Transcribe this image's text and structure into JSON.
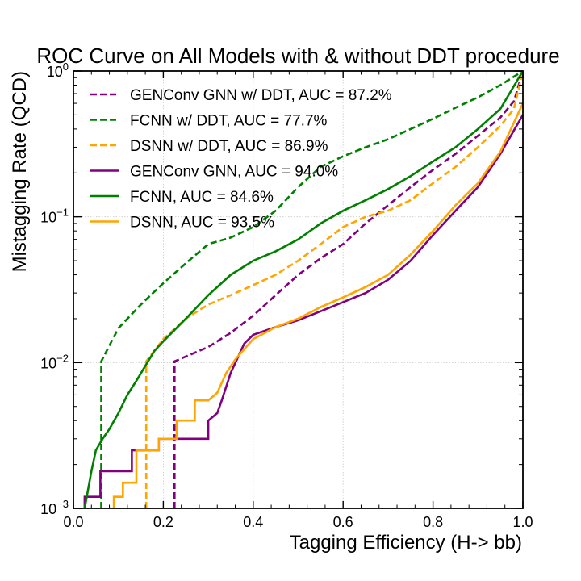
{
  "chart_data": {
    "type": "line",
    "title": "ROC Curve on All Models with & without DDT procedure",
    "xlabel": "Tagging Efficiency (H-> bb)",
    "ylabel": "Mistagging Rate (QCD)",
    "xlim": [
      0,
      1
    ],
    "ylim": [
      0.001,
      1
    ],
    "yscale": "log",
    "grid": true,
    "legend": "top-left",
    "x_ticks": [
      "0.0",
      "0.2",
      "0.4",
      "0.6",
      "0.8",
      "1.0"
    ],
    "y_ticks": [
      {
        "base": "10",
        "exp": "−3"
      },
      {
        "base": "10",
        "exp": "−2"
      },
      {
        "base": "10",
        "exp": "−1"
      },
      {
        "base": "10",
        "exp": "0"
      }
    ],
    "series": [
      {
        "name": "GENConv GNN w/ DDT, AUC = 87.2%",
        "color": "#800080",
        "dash": true,
        "x": [
          0.225,
          0.225,
          0.3,
          0.35,
          0.4,
          0.45,
          0.5,
          0.55,
          0.6,
          0.65,
          0.7,
          0.75,
          0.8,
          0.85,
          0.9,
          0.95,
          0.98,
          1.0
        ],
        "y": [
          0.001,
          0.0102,
          0.0128,
          0.016,
          0.021,
          0.029,
          0.04,
          0.052,
          0.065,
          0.09,
          0.12,
          0.16,
          0.21,
          0.27,
          0.36,
          0.48,
          0.62,
          1.0
        ]
      },
      {
        "name": "FCNN w/ DDT, AUC = 77.7%",
        "color": "#008000",
        "dash": true,
        "x": [
          0.062,
          0.062,
          0.1,
          0.15,
          0.2,
          0.25,
          0.3,
          0.35,
          0.4,
          0.45,
          0.5,
          0.55,
          0.6,
          0.65,
          0.7,
          0.75,
          0.8,
          0.85,
          0.9,
          0.95,
          1.0
        ],
        "y": [
          0.001,
          0.0102,
          0.0172,
          0.025,
          0.035,
          0.048,
          0.065,
          0.072,
          0.085,
          0.11,
          0.16,
          0.22,
          0.26,
          0.3,
          0.34,
          0.4,
          0.47,
          0.56,
          0.66,
          0.8,
          1.0
        ]
      },
      {
        "name": "DSNN w/ DDT, AUC = 86.9%",
        "color": "#FFA500",
        "dash": true,
        "x": [
          0.162,
          0.162,
          0.2,
          0.25,
          0.3,
          0.35,
          0.4,
          0.45,
          0.5,
          0.55,
          0.6,
          0.65,
          0.7,
          0.75,
          0.8,
          0.85,
          0.9,
          0.95,
          0.98,
          1.0
        ],
        "y": [
          0.001,
          0.0102,
          0.0145,
          0.02,
          0.025,
          0.029,
          0.034,
          0.04,
          0.05,
          0.065,
          0.085,
          0.1,
          0.11,
          0.13,
          0.17,
          0.22,
          0.3,
          0.42,
          0.55,
          1.0
        ]
      },
      {
        "name": "GENConv GNN, AUC = 94.0%",
        "color": "#800080",
        "dash": false,
        "x": [
          0.025,
          0.025,
          0.06,
          0.06,
          0.13,
          0.13,
          0.19,
          0.19,
          0.3,
          0.3,
          0.32,
          0.33,
          0.35,
          0.38,
          0.4,
          0.45,
          0.5,
          0.55,
          0.6,
          0.65,
          0.7,
          0.75,
          0.8,
          0.85,
          0.9,
          0.95,
          1.0
        ],
        "y": [
          0.001,
          0.0012,
          0.0012,
          0.0018,
          0.0018,
          0.0025,
          0.0025,
          0.003,
          0.003,
          0.004,
          0.0045,
          0.0055,
          0.0085,
          0.0135,
          0.0155,
          0.0175,
          0.0195,
          0.0225,
          0.026,
          0.03,
          0.037,
          0.05,
          0.075,
          0.11,
          0.16,
          0.27,
          0.5
        ]
      },
      {
        "name": "FCNN, AUC = 84.6%",
        "color": "#008000",
        "dash": false,
        "x": [
          0.025,
          0.04,
          0.05,
          0.065,
          0.08,
          0.1,
          0.12,
          0.14,
          0.16,
          0.18,
          0.2,
          0.25,
          0.3,
          0.35,
          0.4,
          0.45,
          0.5,
          0.55,
          0.6,
          0.65,
          0.7,
          0.75,
          0.8,
          0.85,
          0.9,
          0.95,
          1.0
        ],
        "y": [
          0.001,
          0.0018,
          0.0025,
          0.003,
          0.0035,
          0.0045,
          0.006,
          0.0075,
          0.0095,
          0.012,
          0.014,
          0.02,
          0.029,
          0.04,
          0.05,
          0.058,
          0.07,
          0.09,
          0.11,
          0.13,
          0.155,
          0.19,
          0.24,
          0.3,
          0.4,
          0.55,
          1.0
        ]
      },
      {
        "name": "DSNN, AUC = 93.5%",
        "color": "#FFA500",
        "dash": false,
        "x": [
          0.09,
          0.09,
          0.11,
          0.11,
          0.14,
          0.14,
          0.19,
          0.19,
          0.23,
          0.23,
          0.27,
          0.27,
          0.3,
          0.32,
          0.34,
          0.36,
          0.4,
          0.45,
          0.5,
          0.55,
          0.6,
          0.65,
          0.7,
          0.75,
          0.8,
          0.85,
          0.9,
          0.95,
          1.0
        ],
        "y": [
          0.001,
          0.0012,
          0.0012,
          0.0015,
          0.0015,
          0.0025,
          0.0025,
          0.003,
          0.003,
          0.004,
          0.004,
          0.0055,
          0.0055,
          0.0062,
          0.0085,
          0.0105,
          0.0145,
          0.0175,
          0.02,
          0.024,
          0.028,
          0.033,
          0.04,
          0.055,
          0.08,
          0.12,
          0.17,
          0.28,
          0.6
        ]
      }
    ]
  }
}
